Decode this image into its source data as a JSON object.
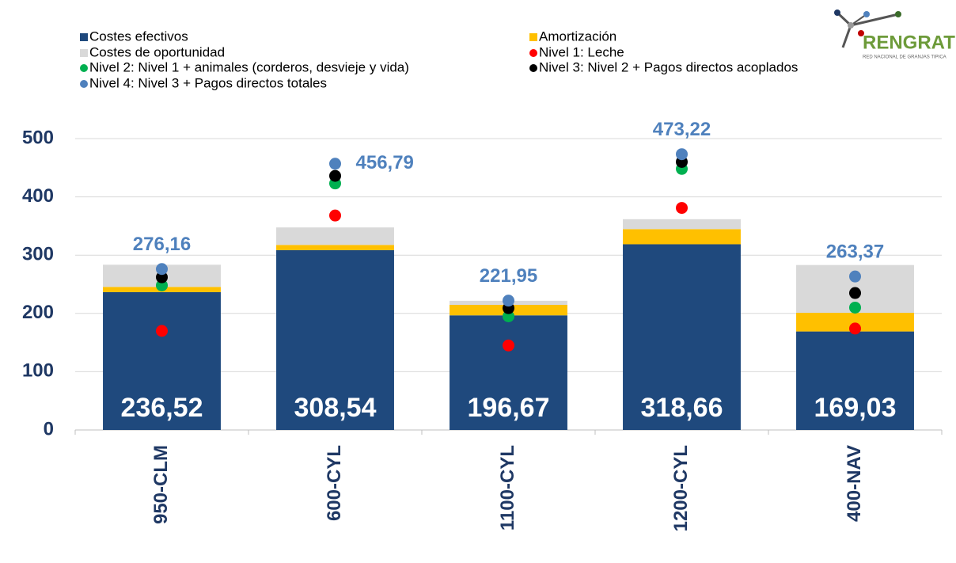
{
  "logo": {
    "text": "RENGRAT",
    "subtitle": "RED NACIONAL DE GRANJAS TIPICA"
  },
  "chart_data": {
    "type": "bar",
    "stacked": true,
    "categories": [
      "950-CLM",
      "600-CYL",
      "1100-CYL",
      "1200-CYL",
      "400-NAV"
    ],
    "ylim": [
      0,
      500
    ],
    "yticks": [
      0,
      100,
      200,
      300,
      400,
      500
    ],
    "grid": true,
    "series": [
      {
        "name": "Costes efectivos",
        "color": "#1F497D",
        "values": [
          236.52,
          308.54,
          196.67,
          318.66,
          169.03
        ],
        "value_labels": [
          "236,52",
          "308,54",
          "196,67",
          "318,66",
          "169,03"
        ]
      },
      {
        "name": "Amortización",
        "color": "#FFC000",
        "values": [
          9,
          9,
          18,
          26,
          32
        ]
      },
      {
        "name": "Costes de oportunidad",
        "color": "#D9D9D9",
        "values": [
          38,
          30,
          7,
          17,
          82
        ]
      },
      {
        "name": "Nivel 1: Leche",
        "type": "scatter",
        "color": "#FF0000",
        "values": [
          170,
          368,
          145,
          381,
          174
        ]
      },
      {
        "name": "Nivel 2: Nivel 1 + animales (corderos, desvieje y vida)",
        "type": "scatter",
        "color": "#00B050",
        "values": [
          248,
          423,
          195,
          448,
          210
        ]
      },
      {
        "name": "Nivel 3: Nivel 2 + Pagos directos acoplados",
        "type": "scatter",
        "color": "#000000",
        "values": [
          262,
          436,
          209,
          460,
          235
        ]
      },
      {
        "name": "Nivel 4: Nivel 3 + Pagos directos totales",
        "type": "scatter",
        "color": "#4F81BD",
        "values": [
          276.16,
          456.79,
          221.95,
          473.22,
          263.37
        ],
        "value_labels": [
          "276,16",
          "456,79",
          "221,95",
          "473,22",
          "263,37"
        ]
      }
    ]
  }
}
